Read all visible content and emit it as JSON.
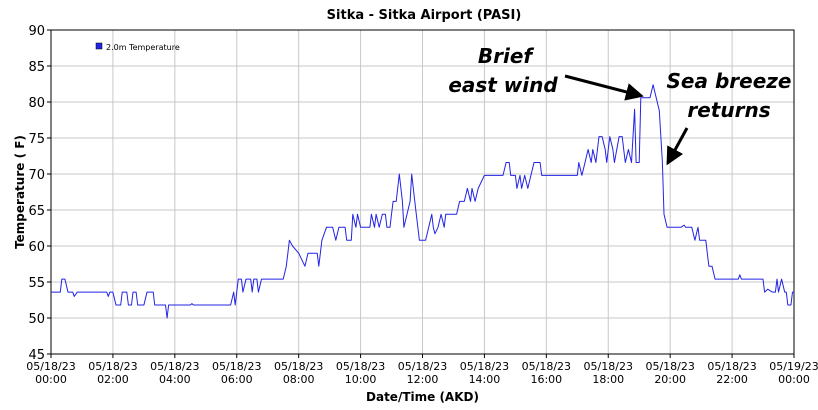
{
  "chart_data": {
    "type": "line",
    "title": "Sitka - Sitka Airport (PASI)",
    "xlabel": "Date/Time (AKD)",
    "ylabel": "Temperature ( F)",
    "ylim": [
      45,
      90
    ],
    "yticks": [
      45,
      50,
      55,
      60,
      65,
      70,
      75,
      80,
      85,
      90
    ],
    "xlim": [
      0,
      24
    ],
    "xticks": [
      {
        "h": 0,
        "date": "05/18/23",
        "time": "00:00"
      },
      {
        "h": 2,
        "date": "05/18/23",
        "time": "02:00"
      },
      {
        "h": 4,
        "date": "05/18/23",
        "time": "04:00"
      },
      {
        "h": 6,
        "date": "05/18/23",
        "time": "06:00"
      },
      {
        "h": 8,
        "date": "05/18/23",
        "time": "08:00"
      },
      {
        "h": 10,
        "date": "05/18/23",
        "time": "10:00"
      },
      {
        "h": 12,
        "date": "05/18/23",
        "time": "12:00"
      },
      {
        "h": 14,
        "date": "05/18/23",
        "time": "14:00"
      },
      {
        "h": 16,
        "date": "05/18/23",
        "time": "16:00"
      },
      {
        "h": 18,
        "date": "05/18/23",
        "time": "18:00"
      },
      {
        "h": 20,
        "date": "05/18/23",
        "time": "20:00"
      },
      {
        "h": 22,
        "date": "05/18/23",
        "time": "22:00"
      },
      {
        "h": 24,
        "date": "05/19/23",
        "time": "00:00"
      }
    ],
    "grid": true,
    "legend_position": "top-left",
    "series": [
      {
        "name": "2.0m Temperature",
        "color": "#2323e6",
        "points": [
          [
            0.0,
            53.6
          ],
          [
            0.3,
            53.6
          ],
          [
            0.35,
            55.4
          ],
          [
            0.45,
            55.4
          ],
          [
            0.55,
            53.6
          ],
          [
            0.7,
            53.6
          ],
          [
            0.75,
            53.0
          ],
          [
            0.85,
            53.6
          ],
          [
            1.0,
            53.6
          ],
          [
            1.5,
            53.6
          ],
          [
            1.8,
            53.6
          ],
          [
            1.85,
            53.0
          ],
          [
            1.9,
            53.6
          ],
          [
            2.0,
            53.6
          ],
          [
            2.1,
            51.8
          ],
          [
            2.25,
            51.8
          ],
          [
            2.3,
            53.6
          ],
          [
            2.45,
            53.6
          ],
          [
            2.5,
            51.8
          ],
          [
            2.6,
            51.8
          ],
          [
            2.65,
            53.6
          ],
          [
            2.75,
            53.6
          ],
          [
            2.8,
            51.8
          ],
          [
            2.9,
            51.8
          ],
          [
            3.0,
            51.8
          ],
          [
            3.1,
            53.6
          ],
          [
            3.3,
            53.6
          ],
          [
            3.35,
            51.8
          ],
          [
            3.7,
            51.8
          ],
          [
            3.75,
            50.0
          ],
          [
            3.8,
            51.8
          ],
          [
            4.5,
            51.8
          ],
          [
            4.55,
            52.0
          ],
          [
            4.6,
            51.8
          ],
          [
            5.0,
            51.8
          ],
          [
            5.8,
            51.8
          ],
          [
            5.9,
            53.6
          ],
          [
            5.95,
            51.8
          ],
          [
            6.05,
            55.4
          ],
          [
            6.15,
            55.4
          ],
          [
            6.2,
            53.6
          ],
          [
            6.3,
            55.4
          ],
          [
            6.45,
            55.4
          ],
          [
            6.5,
            53.6
          ],
          [
            6.55,
            55.4
          ],
          [
            6.65,
            55.4
          ],
          [
            6.7,
            53.6
          ],
          [
            6.8,
            55.4
          ],
          [
            7.5,
            55.4
          ],
          [
            7.6,
            57.2
          ],
          [
            7.7,
            60.8
          ],
          [
            7.8,
            60.0
          ],
          [
            8.0,
            59.0
          ],
          [
            8.2,
            57.2
          ],
          [
            8.3,
            59.0
          ],
          [
            8.6,
            59.0
          ],
          [
            8.65,
            57.2
          ],
          [
            8.75,
            60.8
          ],
          [
            8.9,
            62.6
          ],
          [
            9.1,
            62.6
          ],
          [
            9.2,
            60.8
          ],
          [
            9.3,
            62.6
          ],
          [
            9.5,
            62.6
          ],
          [
            9.55,
            60.8
          ],
          [
            9.7,
            60.8
          ],
          [
            9.75,
            64.4
          ],
          [
            9.85,
            62.6
          ],
          [
            9.9,
            64.4
          ],
          [
            10.0,
            62.6
          ],
          [
            10.3,
            62.6
          ],
          [
            10.35,
            64.4
          ],
          [
            10.45,
            62.6
          ],
          [
            10.5,
            64.4
          ],
          [
            10.6,
            62.6
          ],
          [
            10.7,
            64.4
          ],
          [
            10.8,
            64.4
          ],
          [
            10.85,
            62.6
          ],
          [
            10.95,
            62.6
          ],
          [
            11.0,
            64.4
          ],
          [
            11.05,
            66.2
          ],
          [
            11.15,
            66.2
          ],
          [
            11.25,
            70.0
          ],
          [
            11.35,
            66.2
          ],
          [
            11.4,
            62.6
          ],
          [
            11.5,
            64.4
          ],
          [
            11.6,
            66.2
          ],
          [
            11.65,
            70.0
          ],
          [
            11.75,
            66.2
          ],
          [
            11.8,
            64.4
          ],
          [
            11.9,
            60.8
          ],
          [
            12.1,
            60.8
          ],
          [
            12.2,
            62.6
          ],
          [
            12.3,
            64.4
          ],
          [
            12.35,
            62.6
          ],
          [
            12.4,
            61.7
          ],
          [
            12.5,
            62.6
          ],
          [
            12.6,
            64.4
          ],
          [
            12.7,
            62.6
          ],
          [
            12.75,
            64.4
          ],
          [
            13.0,
            64.4
          ],
          [
            13.1,
            64.4
          ],
          [
            13.2,
            66.2
          ],
          [
            13.35,
            66.2
          ],
          [
            13.45,
            68.0
          ],
          [
            13.55,
            66.2
          ],
          [
            13.6,
            68.0
          ],
          [
            13.7,
            66.2
          ],
          [
            13.8,
            68.0
          ],
          [
            14.0,
            69.8
          ],
          [
            14.6,
            69.8
          ],
          [
            14.7,
            71.6
          ],
          [
            14.8,
            71.6
          ],
          [
            14.85,
            69.8
          ],
          [
            15.0,
            69.8
          ],
          [
            15.05,
            68.0
          ],
          [
            15.15,
            69.8
          ],
          [
            15.2,
            68.0
          ],
          [
            15.3,
            69.8
          ],
          [
            15.4,
            68.0
          ],
          [
            15.5,
            69.8
          ],
          [
            15.6,
            71.6
          ],
          [
            15.8,
            71.6
          ],
          [
            15.85,
            69.8
          ],
          [
            17.0,
            69.8
          ],
          [
            17.05,
            71.6
          ],
          [
            17.15,
            69.8
          ],
          [
            17.25,
            71.6
          ],
          [
            17.35,
            73.4
          ],
          [
            17.45,
            71.6
          ],
          [
            17.5,
            73.4
          ],
          [
            17.6,
            71.6
          ],
          [
            17.7,
            75.2
          ],
          [
            17.8,
            75.2
          ],
          [
            17.9,
            73.4
          ],
          [
            17.95,
            71.6
          ],
          [
            18.05,
            75.2
          ],
          [
            18.15,
            73.4
          ],
          [
            18.2,
            71.6
          ],
          [
            18.35,
            75.2
          ],
          [
            18.45,
            75.2
          ],
          [
            18.5,
            73.4
          ],
          [
            18.55,
            71.6
          ],
          [
            18.65,
            73.4
          ],
          [
            18.75,
            71.6
          ],
          [
            18.8,
            75.2
          ],
          [
            18.85,
            79.0
          ],
          [
            18.9,
            71.6
          ],
          [
            19.0,
            71.6
          ],
          [
            19.05,
            80.6
          ],
          [
            19.2,
            80.6
          ],
          [
            19.35,
            80.6
          ],
          [
            19.45,
            82.4
          ],
          [
            19.55,
            80.6
          ],
          [
            19.65,
            78.8
          ],
          [
            19.75,
            71.6
          ],
          [
            19.8,
            64.4
          ],
          [
            19.9,
            62.6
          ],
          [
            20.1,
            62.6
          ],
          [
            20.3,
            62.6
          ],
          [
            20.35,
            62.6
          ],
          [
            20.45,
            62.9
          ],
          [
            20.5,
            62.6
          ],
          [
            20.55,
            62.6
          ],
          [
            20.65,
            62.6
          ],
          [
            20.7,
            62.6
          ],
          [
            20.8,
            60.8
          ],
          [
            20.9,
            62.6
          ],
          [
            20.95,
            60.8
          ],
          [
            21.15,
            60.8
          ],
          [
            21.2,
            59.0
          ],
          [
            21.25,
            57.2
          ],
          [
            21.35,
            57.2
          ],
          [
            21.45,
            55.4
          ],
          [
            22.0,
            55.4
          ],
          [
            22.2,
            55.4
          ],
          [
            22.25,
            56.0
          ],
          [
            22.3,
            55.4
          ],
          [
            23.0,
            55.4
          ],
          [
            23.05,
            53.6
          ],
          [
            23.15,
            54.0
          ],
          [
            23.3,
            53.6
          ],
          [
            23.4,
            53.6
          ],
          [
            23.45,
            55.4
          ],
          [
            23.5,
            53.6
          ],
          [
            23.6,
            55.4
          ],
          [
            23.7,
            53.6
          ],
          [
            23.75,
            53.6
          ],
          [
            23.8,
            51.8
          ],
          [
            23.9,
            51.8
          ],
          [
            23.95,
            53.6
          ],
          [
            24.0,
            53.6
          ]
        ]
      }
    ],
    "annotations": [
      {
        "id": "brief",
        "lines": [
          "Brief",
          "east wind"
        ],
        "arrow_to": [
          19.25,
          80.6
        ]
      },
      {
        "id": "seabreeze",
        "lines": [
          "Sea breeze",
          "returns"
        ],
        "arrow_to": [
          19.8,
          71.0
        ]
      }
    ]
  }
}
